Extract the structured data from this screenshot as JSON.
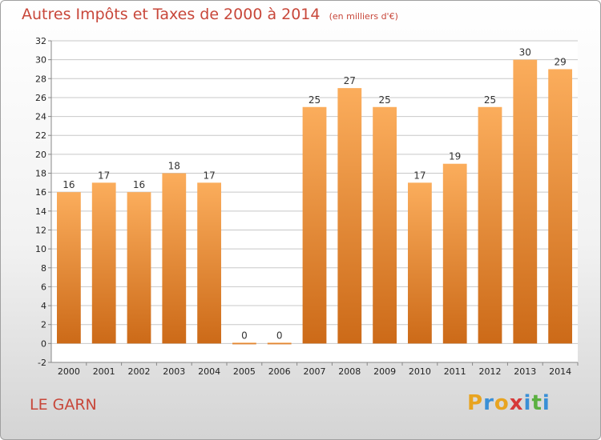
{
  "header": {
    "title": "Autres Impôts et Taxes de 2000 à 2014",
    "subtitle": "(en milliers d'€)"
  },
  "footer": {
    "place": "LE GARN",
    "logo_letters": [
      "P",
      "r",
      "o",
      "x",
      "i",
      "t",
      "i"
    ],
    "logo_colors": [
      "#e8a420",
      "#3a8fd6",
      "#e8a420",
      "#d63a3a",
      "#3a8fd6",
      "#5ab040",
      "#3a8fd6"
    ]
  },
  "colors": {
    "bar_light": "#fbad5c",
    "bar_dark": "#cc6a18",
    "grid": "#c8c8c8",
    "axis": "#888888"
  },
  "chart_data": {
    "type": "bar",
    "categories": [
      "2000",
      "2001",
      "2002",
      "2003",
      "2004",
      "2005",
      "2006",
      "2007",
      "2008",
      "2009",
      "2010",
      "2011",
      "2012",
      "2013",
      "2014"
    ],
    "values": [
      16,
      17,
      16,
      18,
      17,
      0,
      0,
      25,
      27,
      25,
      17,
      19,
      25,
      30,
      29
    ],
    "data_labels": [
      "16",
      "17",
      "16",
      "18",
      "17",
      "0",
      "0",
      "25",
      "27",
      "25",
      "17",
      "19",
      "25",
      "30",
      "29"
    ],
    "title": "Autres Impôts et Taxes de 2000 à 2014",
    "ylabel": "",
    "xlabel": "",
    "ylim": [
      -2,
      32
    ],
    "yticks": [
      -2,
      0,
      2,
      4,
      6,
      8,
      10,
      12,
      14,
      16,
      18,
      20,
      22,
      24,
      26,
      28,
      30,
      32
    ],
    "grid": true
  }
}
